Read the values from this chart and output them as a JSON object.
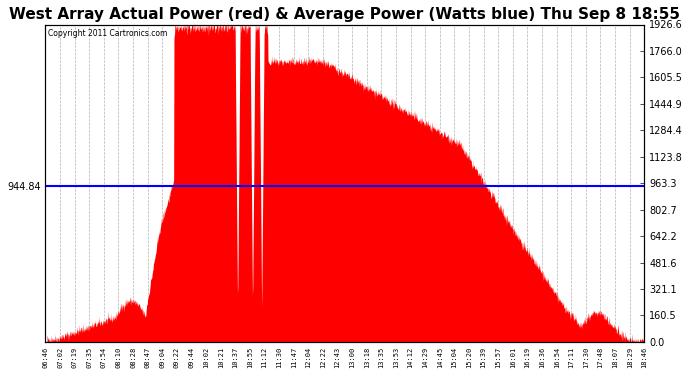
{
  "title": "West Array Actual Power (red) & Average Power (Watts blue) Thu Sep 8 18:55",
  "copyright": "Copyright 2011 Cartronics.com",
  "avg_power": 944.84,
  "y_max": 1926.6,
  "y_min": 0.0,
  "y_ticks_right": [
    0.0,
    160.5,
    321.1,
    481.6,
    642.2,
    802.7,
    963.3,
    1123.8,
    1284.4,
    1444.9,
    1605.5,
    1766.0,
    1926.6
  ],
  "fill_color": "#FF0000",
  "line_color": "#0000FF",
  "background_color": "#FFFFFF",
  "grid_color": "#AAAAAA",
  "title_fontsize": 11,
  "x_labels": [
    "06:46",
    "07:02",
    "07:19",
    "07:35",
    "07:54",
    "08:10",
    "08:28",
    "08:47",
    "09:04",
    "09:22",
    "09:44",
    "10:02",
    "10:21",
    "10:37",
    "10:55",
    "11:12",
    "11:30",
    "11:47",
    "12:04",
    "12:22",
    "12:43",
    "13:00",
    "13:18",
    "13:35",
    "13:53",
    "14:12",
    "14:29",
    "14:45",
    "15:04",
    "15:20",
    "15:39",
    "15:57",
    "16:01",
    "16:19",
    "16:36",
    "16:54",
    "17:11",
    "17:30",
    "17:48",
    "18:07",
    "18:29",
    "18:46"
  ]
}
